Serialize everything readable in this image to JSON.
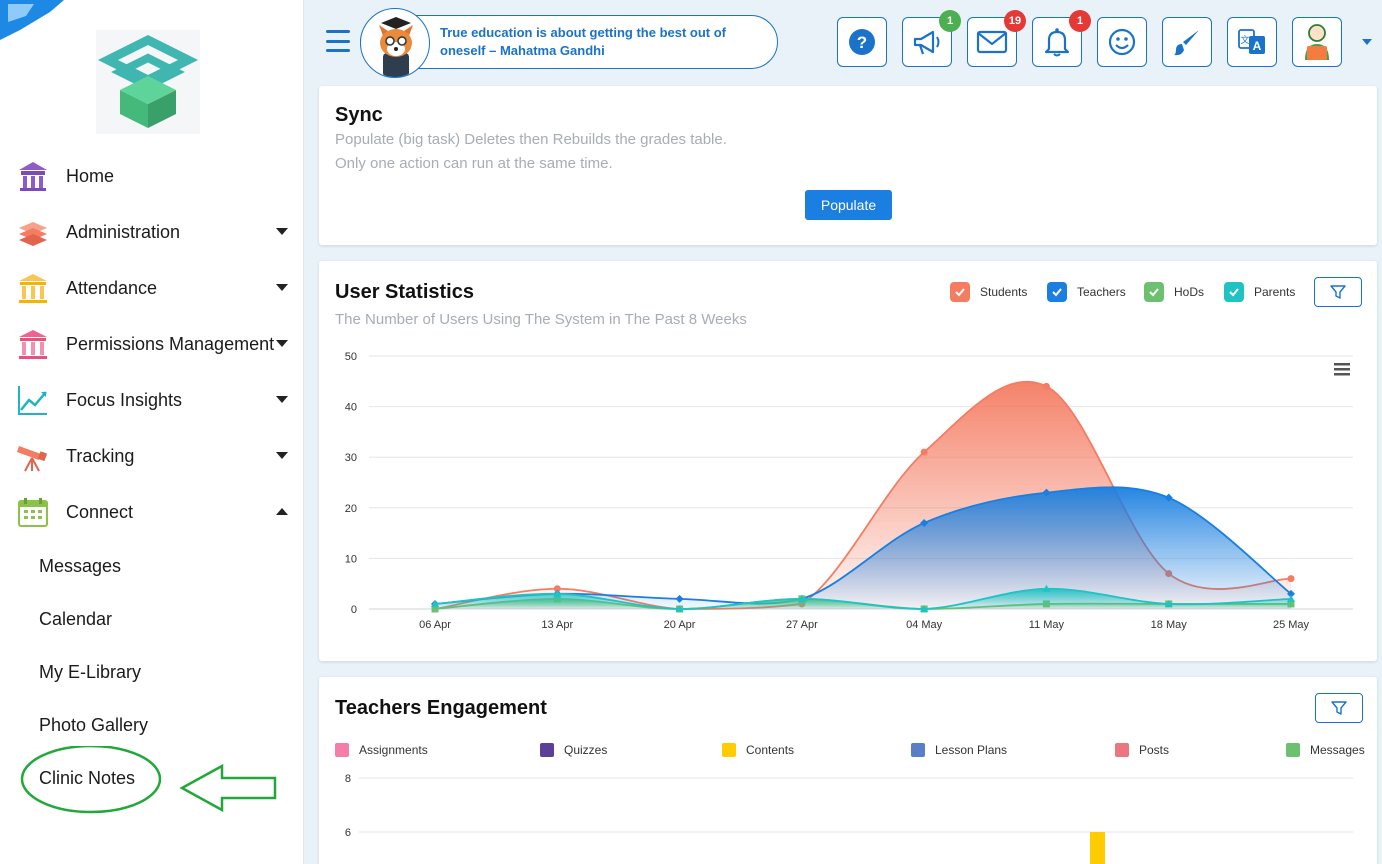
{
  "sidebar": {
    "items": [
      {
        "label": "Home",
        "has_caret": false
      },
      {
        "label": "Administration",
        "has_caret": true
      },
      {
        "label": "Attendance",
        "has_caret": true
      },
      {
        "label": "Permissions Management",
        "has_caret": true
      },
      {
        "label": "Focus Insights",
        "has_caret": true
      },
      {
        "label": "Tracking",
        "has_caret": true
      },
      {
        "label": "Connect",
        "has_caret": true,
        "expanded": true
      }
    ],
    "subitems": [
      "Messages",
      "Calendar",
      "My E-Library",
      "Photo Gallery",
      "Clinic Notes"
    ]
  },
  "topbar": {
    "quote": "True education is about getting the best out of oneself – Mahatma Gandhi",
    "badges": {
      "announcements": "1",
      "messages": "19",
      "notifications": "1"
    }
  },
  "sync": {
    "title": "Sync",
    "line1": "Populate (big task) Deletes then Rebuilds the grades table.",
    "line2": "Only one action can run at the same time.",
    "button": "Populate"
  },
  "stats": {
    "title": "User Statistics",
    "subtitle": "The Number of Users Using The System in The Past 8 Weeks",
    "legend": [
      "Students",
      "Teachers",
      "HoDs",
      "Parents"
    ]
  },
  "engagement": {
    "title": "Teachers Engagement",
    "legend": [
      "Assignments",
      "Quizzes",
      "Contents",
      "Lesson Plans",
      "Posts",
      "Messages"
    ]
  },
  "colors": {
    "accent": "#1a73c8",
    "students": "#f47c62",
    "teachers": "#1a7fe0",
    "hods": "#6cc070",
    "parents": "#1fc3c3",
    "assignments": "#f57ea8",
    "quizzes": "#5c3f97",
    "contents": "#ffcc00",
    "lesson_plans": "#5a7fc8",
    "posts": "#ea7680",
    "messages": "#6cc070"
  },
  "chart_data": [
    {
      "type": "area",
      "title": "User Statistics",
      "categories": [
        "06 Apr",
        "13 Apr",
        "20 Apr",
        "27 Apr",
        "04 May",
        "11 May",
        "18 May",
        "25 May"
      ],
      "ylim": [
        0,
        50
      ],
      "yticks": [
        0,
        10,
        20,
        30,
        40,
        50
      ],
      "series": [
        {
          "name": "Students",
          "values": [
            0,
            4,
            0,
            1,
            31,
            44,
            7,
            6
          ]
        },
        {
          "name": "Teachers",
          "values": [
            1,
            3,
            2,
            2,
            17,
            23,
            22,
            3
          ]
        },
        {
          "name": "HoDs",
          "values": [
            0,
            2,
            0,
            2,
            0,
            1,
            1,
            1
          ]
        },
        {
          "name": "Parents",
          "values": [
            1,
            3,
            0,
            2,
            0,
            4,
            1,
            2
          ]
        }
      ]
    },
    {
      "type": "bar",
      "title": "Teachers Engagement",
      "yticks": [
        6,
        8
      ],
      "series": [
        "Assignments",
        "Quizzes",
        "Contents",
        "Lesson Plans",
        "Posts",
        "Messages"
      ]
    }
  ]
}
